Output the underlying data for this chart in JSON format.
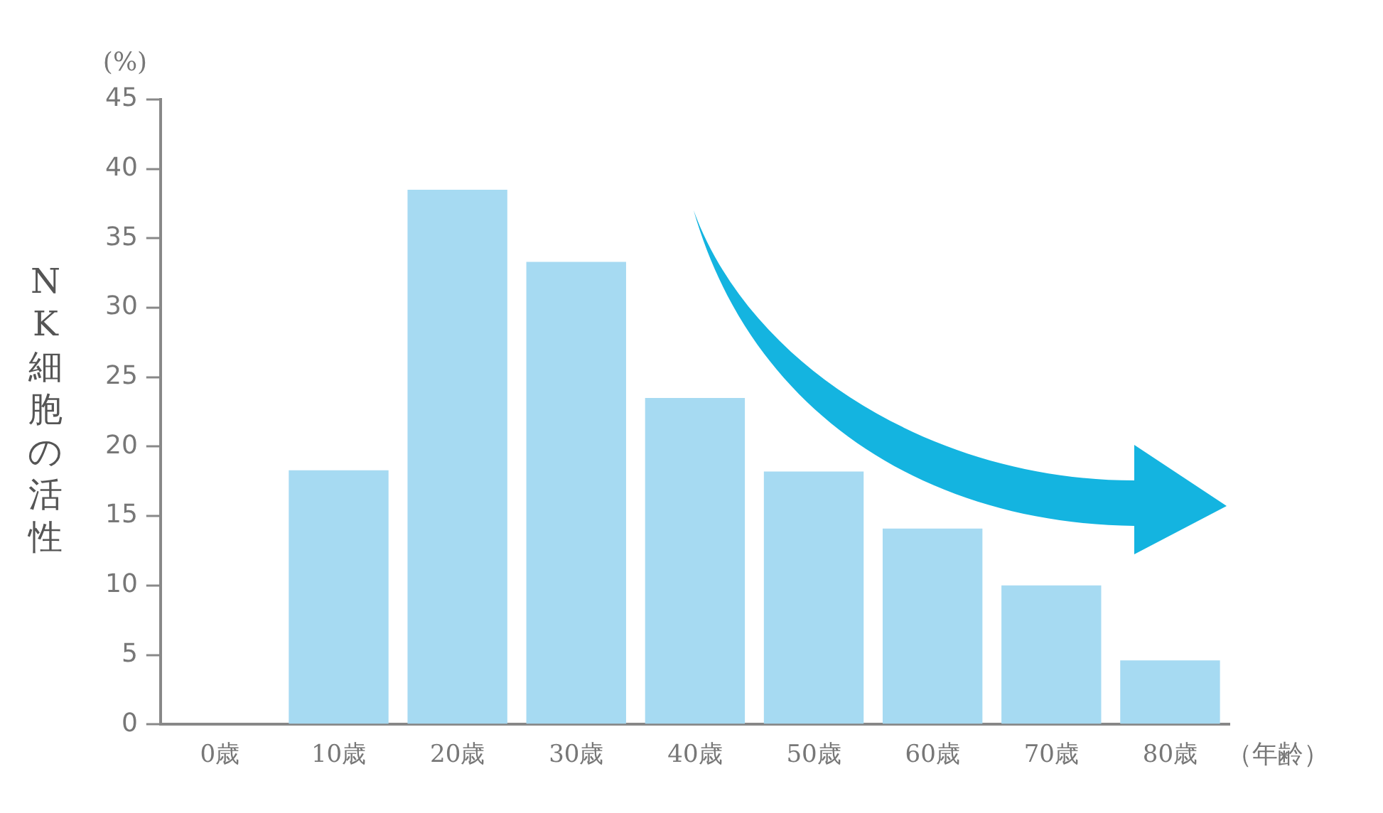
{
  "chart_data": {
    "type": "bar",
    "categories": [
      "0歳",
      "10歳",
      "20歳",
      "30歳",
      "40歳",
      "50歳",
      "60歳",
      "70歳",
      "80歳"
    ],
    "values": [
      0,
      18.3,
      38.5,
      33.3,
      23.5,
      18.2,
      14.1,
      10,
      4.6
    ],
    "color": "#a6daf2",
    "ylabel": "NK細胞の活性",
    "xlabel": "（年齢）",
    "annotations": [
      "(%)"
    ],
    "ylim": [
      0,
      45
    ],
    "yticks": [
      0,
      5,
      10,
      15,
      20,
      25,
      30,
      35,
      40,
      45
    ],
    "grid": false,
    "legend": false
  }
}
